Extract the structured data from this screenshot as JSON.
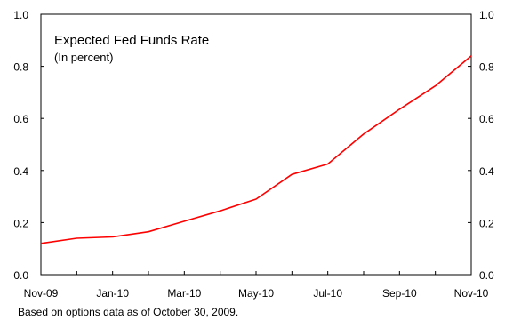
{
  "chart_data": {
    "type": "line",
    "title": "Expected Fed Funds Rate",
    "subtitle": "(In percent)",
    "xlabel": "",
    "ylabel": "",
    "x": [
      "Nov-09",
      "Dec-09",
      "Jan-10",
      "Feb-10",
      "Mar-10",
      "Apr-10",
      "May-10",
      "Jun-10",
      "Jul-10",
      "Aug-10",
      "Sep-10",
      "Oct-10",
      "Nov-10"
    ],
    "x_tick_labels": [
      "Nov-09",
      "Jan-10",
      "Mar-10",
      "May-10",
      "Jul-10",
      "Sep-10",
      "Nov-10"
    ],
    "series": [
      {
        "values": [
          0.12,
          0.14,
          0.145,
          0.165,
          0.205,
          0.245,
          0.29,
          0.385,
          0.425,
          0.54,
          0.635,
          0.725,
          0.84
        ],
        "color": "#ff0000"
      }
    ],
    "ylim": [
      0,
      1.0
    ],
    "y_ticks": [
      "0.0",
      "0.2",
      "0.4",
      "0.6",
      "0.8",
      "1.0"
    ],
    "grid": false,
    "legend": "none",
    "footnote": "Based on options data as of October 30, 2009."
  }
}
